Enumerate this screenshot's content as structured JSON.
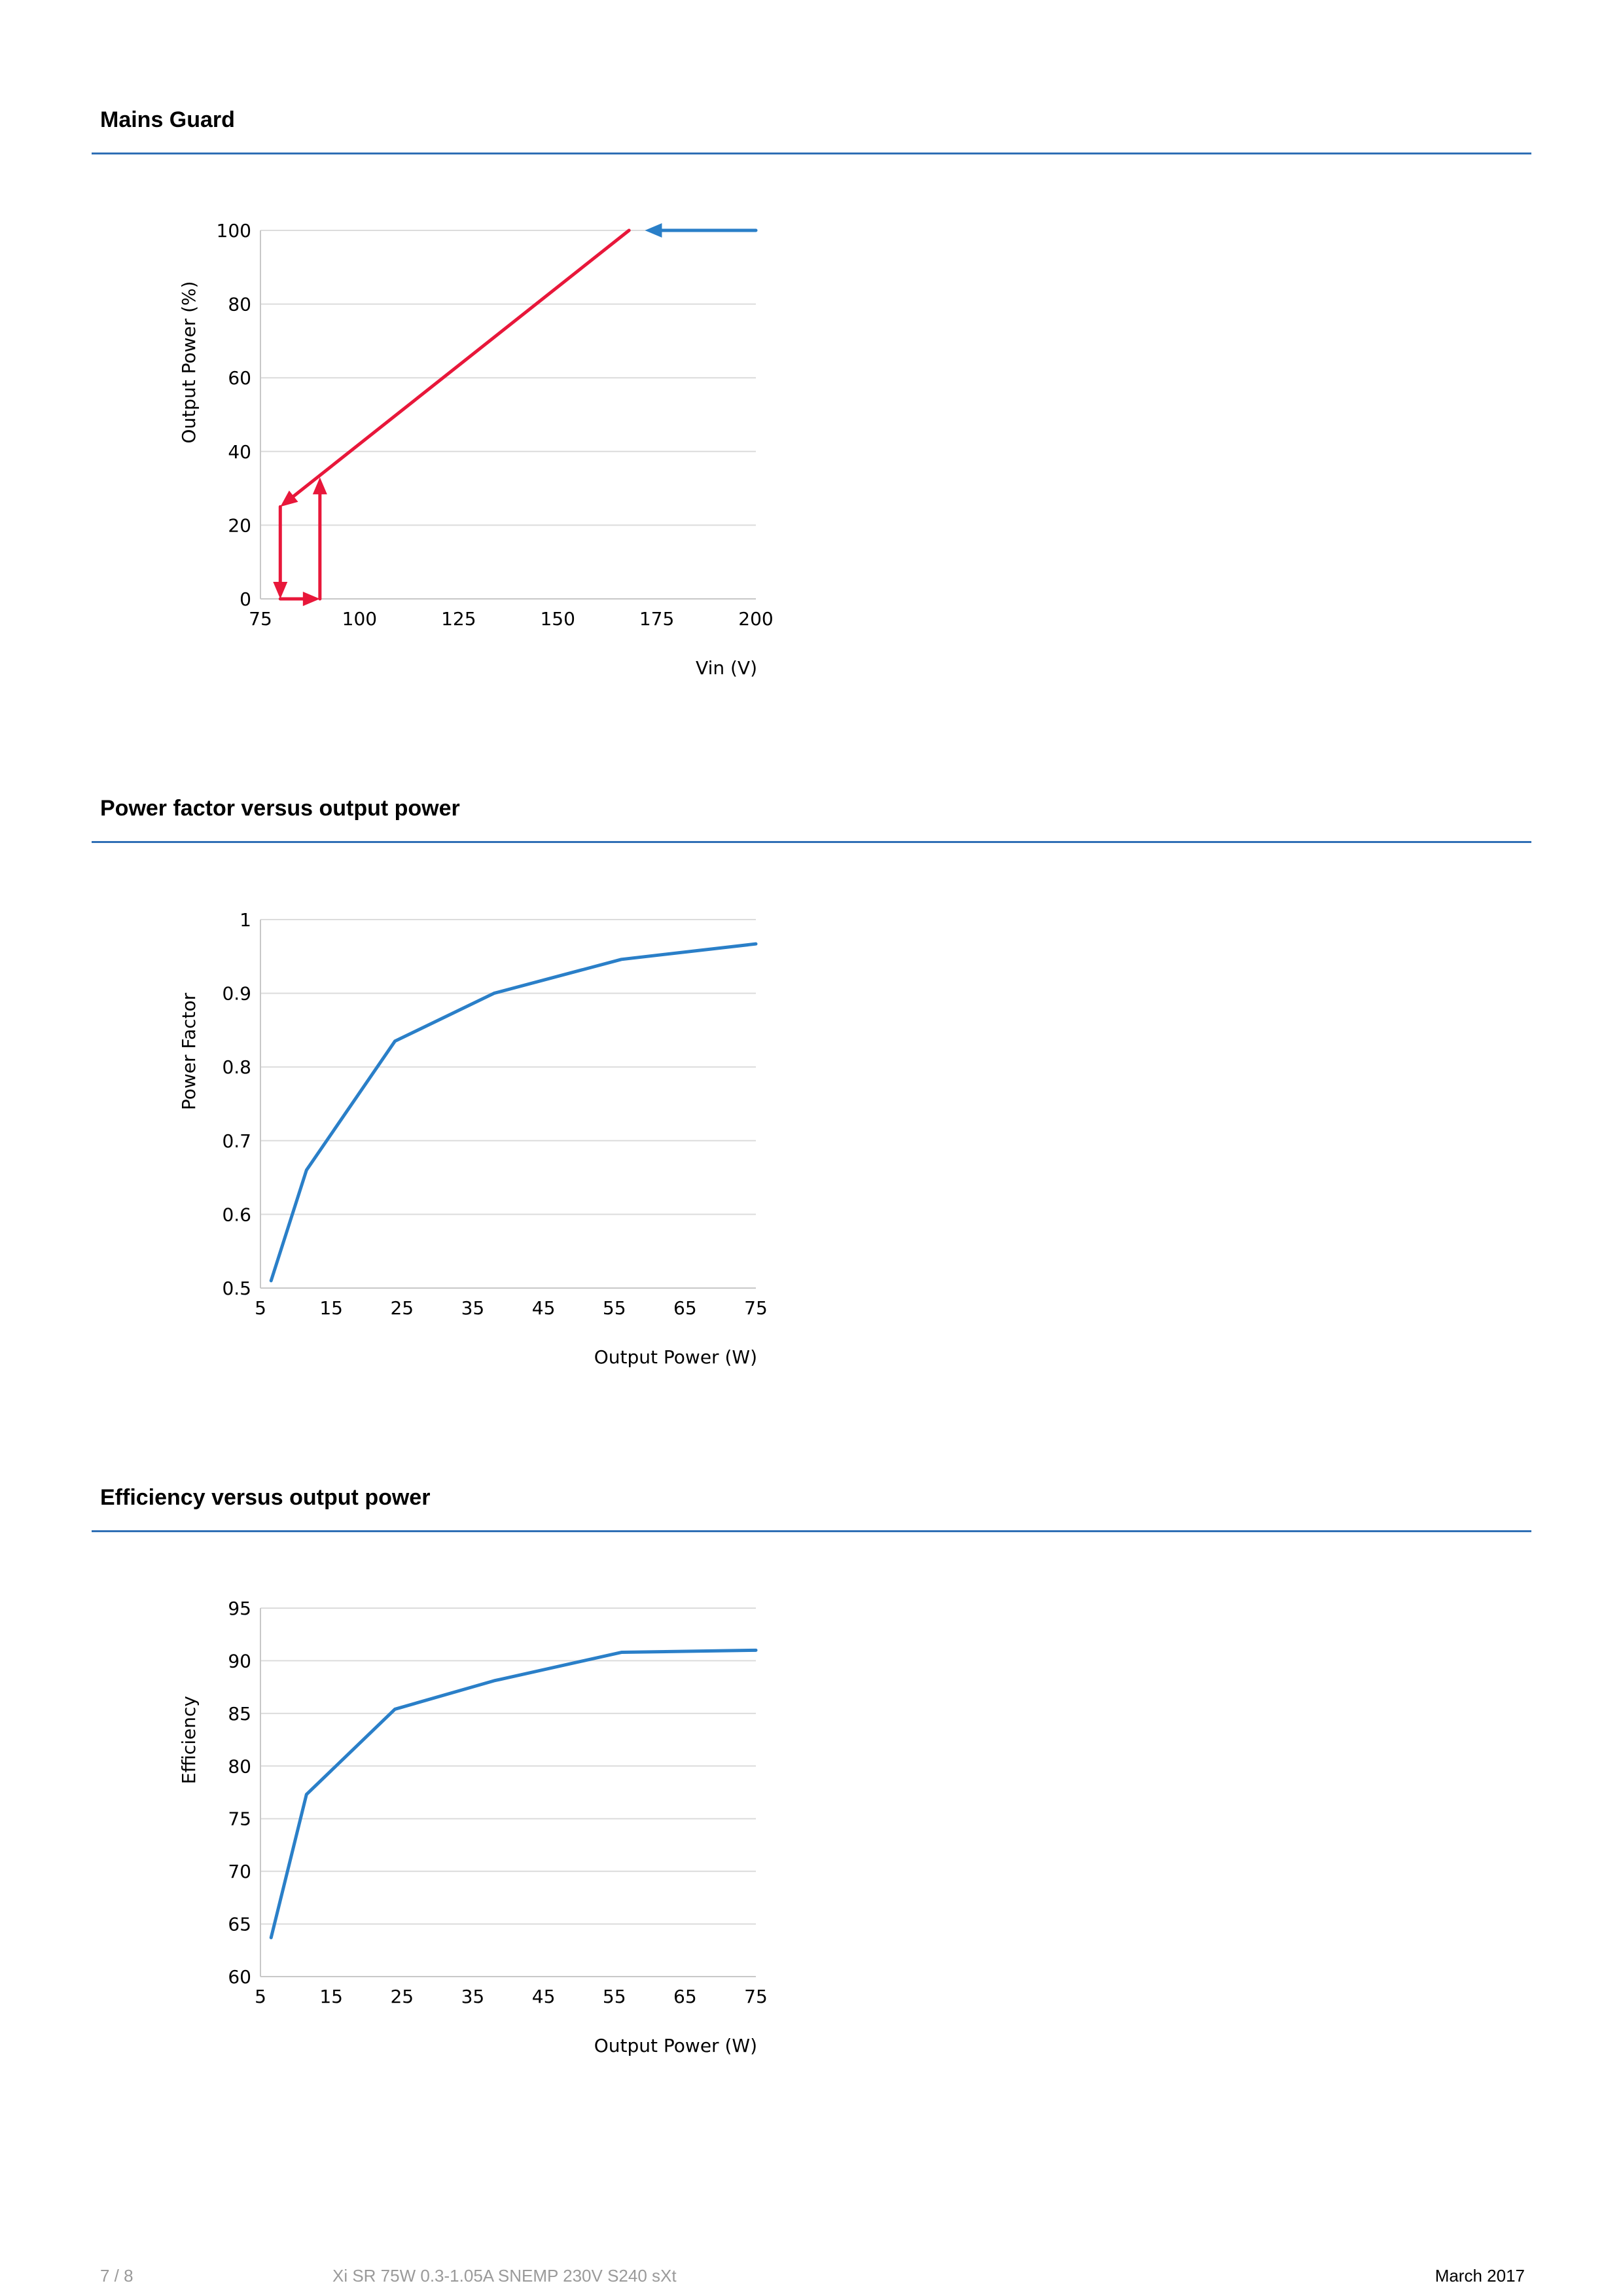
{
  "sections": [
    {
      "title": "Mains Guard"
    },
    {
      "title": "Power factor versus output power"
    },
    {
      "title": "Efficiency versus output power"
    }
  ],
  "footer": {
    "page": "7 / 8",
    "product": "Xi SR 75W 0.3-1.05A SNEMP 230V S240 sXt",
    "date": "March 2017"
  },
  "colors": {
    "accent": "#2f6fb5",
    "series_blue": "#2a7fc8",
    "series_red": "#e8173a",
    "grid": "#dcdcdc"
  },
  "chart_data": [
    {
      "type": "line",
      "xlabel": "Vin (V)",
      "ylabel": "Output Power (%)",
      "xlim": [
        75,
        200
      ],
      "ylim": [
        0,
        100
      ],
      "xticks": [
        75,
        100,
        125,
        150,
        175,
        200
      ],
      "yticks": [
        0,
        20,
        40,
        60,
        80,
        100
      ],
      "grid": true,
      "series": [
        {
          "color": "#2a7fc8",
          "arrows": true,
          "segments": [
            {
              "x": [
                200,
                172
              ],
              "y": [
                100,
                100
              ]
            }
          ]
        },
        {
          "color": "#e8173a",
          "arrows": true,
          "segments": [
            {
              "x": [
                168,
                80
              ],
              "y": [
                100,
                25
              ]
            },
            {
              "x": [
                80,
                80
              ],
              "y": [
                25,
                0
              ]
            },
            {
              "x": [
                80,
                90
              ],
              "y": [
                0,
                0
              ]
            },
            {
              "x": [
                90,
                90
              ],
              "y": [
                0,
                33
              ]
            }
          ]
        }
      ]
    },
    {
      "type": "line",
      "xlabel": "Output Power (W)",
      "ylabel": "Power Factor",
      "xlim": [
        5,
        75
      ],
      "ylim": [
        0.5,
        1
      ],
      "xticks": [
        5,
        15,
        25,
        35,
        45,
        55,
        65,
        75
      ],
      "yticks": [
        0.5,
        0.6,
        0.7,
        0.8,
        0.9,
        1
      ],
      "ytick_labels": [
        "0.5",
        "0.6",
        "0.7",
        "0.8",
        "0.9",
        "1"
      ],
      "grid": true,
      "series": [
        {
          "color": "#2a7fc8",
          "x": [
            6.5,
            11.5,
            24,
            38,
            56,
            75
          ],
          "y": [
            0.51,
            0.66,
            0.835,
            0.9,
            0.946,
            0.967
          ]
        }
      ]
    },
    {
      "type": "line",
      "xlabel": "Output Power (W)",
      "ylabel": "Efficiency",
      "xlim": [
        5,
        75
      ],
      "ylim": [
        60,
        95
      ],
      "xticks": [
        5,
        15,
        25,
        35,
        45,
        55,
        65,
        75
      ],
      "yticks": [
        60,
        65,
        70,
        75,
        80,
        85,
        90,
        95
      ],
      "grid": true,
      "series": [
        {
          "color": "#2a7fc8",
          "x": [
            6.5,
            11.5,
            24,
            38,
            56,
            75
          ],
          "y": [
            63.7,
            77.3,
            85.4,
            88.1,
            90.8,
            91
          ]
        }
      ]
    }
  ]
}
